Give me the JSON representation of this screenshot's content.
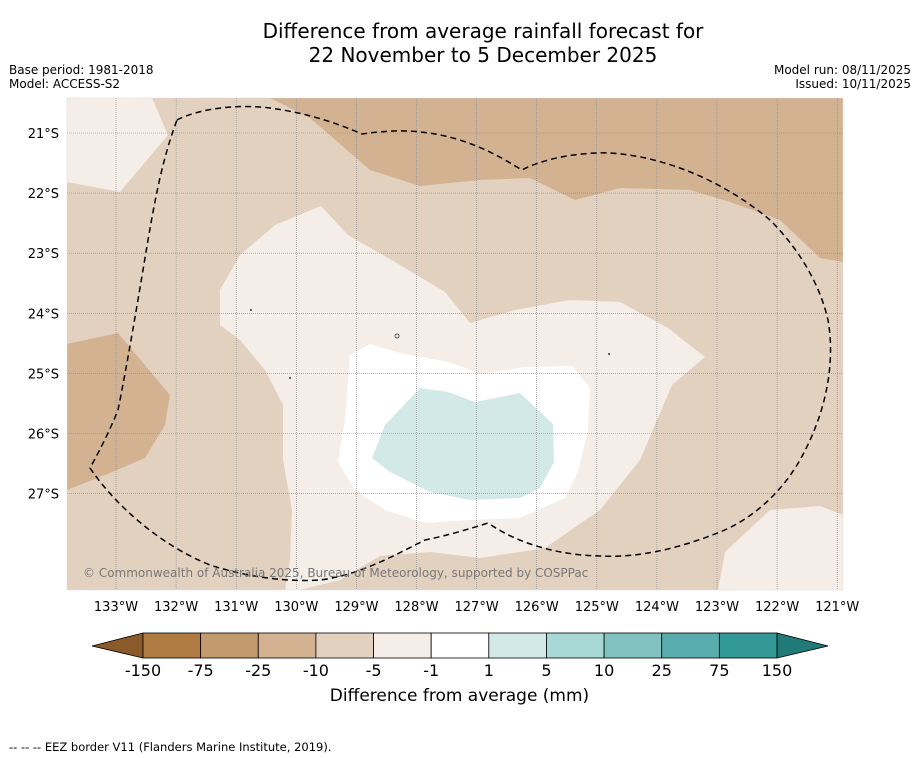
{
  "title": {
    "line1": "Difference from average rainfall forecast for",
    "line2": "22 November to 5 December 2025"
  },
  "meta": {
    "base_period": "Base period: 1981-2018",
    "model": "Model: ACCESS-S2",
    "model_run": "Model run: 08/11/2025",
    "issued": "Issued: 10/11/2025"
  },
  "map": {
    "lat_labels": [
      "21°S",
      "22°S",
      "23°S",
      "24°S",
      "25°S",
      "26°S",
      "27°S"
    ],
    "lon_labels": [
      "133°W",
      "132°W",
      "131°W",
      "130°W",
      "129°W",
      "128°W",
      "127°W",
      "126°W",
      "125°W",
      "124°W",
      "123°W",
      "122°W",
      "121°W"
    ],
    "copyright": "© Commonwealth of Australia 2025, Bureau of Meteorology, supported by COSPPac",
    "colors": {
      "lt_minus150": "#8b5a2b",
      "m150_m75": "#b07a43",
      "m75_m25": "#c39a6d",
      "m25_m10": "#d3b291",
      "m10_m5": "#e3d1bf",
      "m5_m1": "#f4ede8",
      "m1_1": "#ffffff",
      "p1_5": "#d3e9e8",
      "p5_10": "#a8d8d6",
      "p10_25": "#80c2c0",
      "p25_75": "#58adac",
      "p75_150": "#329996",
      "gt150": "#1f7a78"
    }
  },
  "colorbar": {
    "tick_labels": [
      "-150",
      "-75",
      "-25",
      "-10",
      "-5",
      "-1",
      "1",
      "5",
      "10",
      "25",
      "75",
      "150"
    ],
    "colors": [
      "#b07a43",
      "#c39a6d",
      "#d3b291",
      "#e3d1bf",
      "#f4ede8",
      "#ffffff",
      "#d3e9e8",
      "#a8d8d6",
      "#80c2c0",
      "#58adac",
      "#329996"
    ],
    "low_extend_color": "#8b5a2b",
    "high_extend_color": "#1f7a78",
    "label": "Difference from average (mm)"
  },
  "footer": {
    "legend_line": "--  --  -- EEZ border V11 (Flanders Marine Institute, 2019)."
  }
}
